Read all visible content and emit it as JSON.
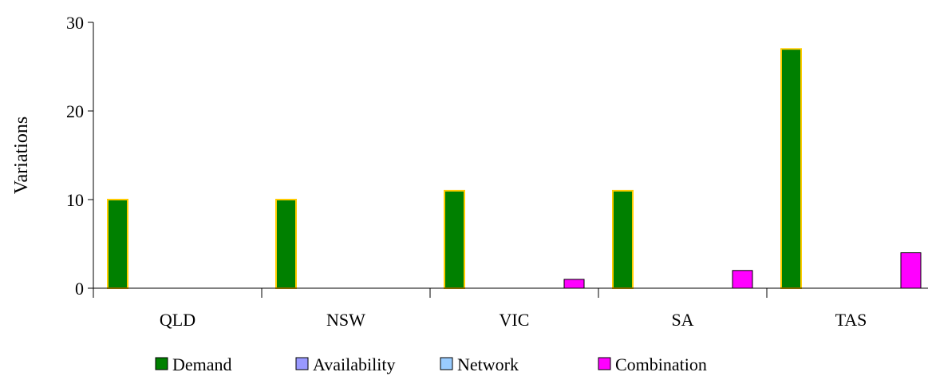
{
  "chart_data": {
    "type": "bar",
    "categories": [
      "QLD",
      "NSW",
      "VIC",
      "SA",
      "TAS"
    ],
    "series": [
      {
        "name": "Demand",
        "values": [
          10,
          10,
          11,
          11,
          27
        ],
        "fill": "#008000",
        "stroke": "#FFCC00"
      },
      {
        "name": "Availability",
        "values": [
          0,
          0,
          0,
          0,
          0
        ],
        "fill": "#9999FF",
        "stroke": "#000000"
      },
      {
        "name": "Network",
        "values": [
          0,
          0,
          0,
          0,
          0
        ],
        "fill": "#99CCFF",
        "stroke": "#000000"
      },
      {
        "name": "Combination",
        "values": [
          0,
          0,
          1,
          2,
          4
        ],
        "fill": "#FF00FF",
        "stroke": "#000000"
      }
    ],
    "title": "",
    "xlabel": "",
    "ylabel": "Variations",
    "ylim": [
      0,
      30
    ],
    "yticks": [
      0,
      10,
      20,
      30
    ],
    "grid": false,
    "legend_position": "bottom"
  }
}
